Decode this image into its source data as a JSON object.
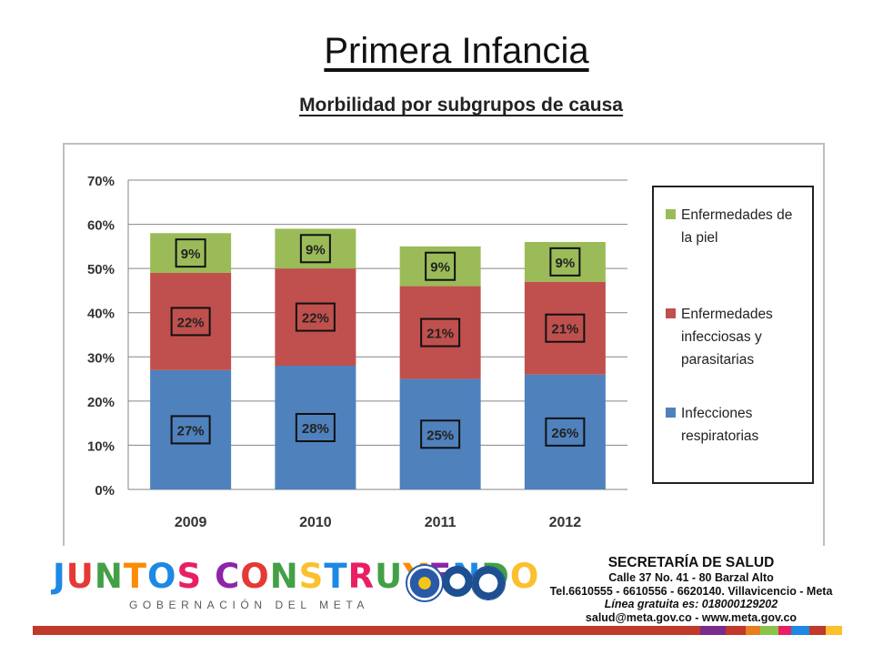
{
  "slide": {
    "title": "Primera Infancia",
    "subtitle": "Morbilidad por subgrupos de causa"
  },
  "chart_data": {
    "type": "bar",
    "stacked": true,
    "categories": [
      "2009",
      "2010",
      "2011",
      "2012"
    ],
    "series": [
      {
        "name": "Infecciones respiratorias",
        "values": [
          27,
          28,
          25,
          26
        ],
        "labels": [
          "27%",
          "28%",
          "25%",
          "26%"
        ],
        "color": "#4f81bd"
      },
      {
        "name": "Enfermedades infecciosas y parasitarias",
        "values": [
          22,
          22,
          21,
          21
        ],
        "labels": [
          "22%",
          "22%",
          "21%",
          "21%"
        ],
        "color": "#c0504d"
      },
      {
        "name": "Enfermedades de la piel",
        "values": [
          9,
          9,
          9,
          9
        ],
        "labels": [
          "9%",
          "9%",
          "9%",
          "9%"
        ],
        "color": "#9bbb59"
      }
    ],
    "legend_lines": [
      [
        "Enfermedades de",
        "la piel"
      ],
      [
        "Enfermedades",
        "infecciosas y",
        "parasitarias"
      ],
      [
        "Infecciones",
        "respiratorias"
      ]
    ],
    "yticks": [
      "0%",
      "10%",
      "20%",
      "30%",
      "40%",
      "50%",
      "60%",
      "70%"
    ],
    "ylim": [
      0,
      70
    ],
    "grid": true,
    "legend_position": "right"
  },
  "footer": {
    "logo_text": "JUNTOS CONSTRUYENDO",
    "logo_subtitle": "GOBERNACIÓN DEL META",
    "org": "SECRETARÍA DE SALUD",
    "lines": [
      "Calle 37 No. 41 - 80 Barzal Alto",
      "Tel.6610555 - 6610556 - 6620140. Villavicencio - Meta",
      "Línea gratuita es: 018000129202",
      "salud@meta.gov.co - www.meta.gov.co"
    ]
  },
  "colors": {
    "blue": "#4f81bd",
    "red": "#c0504d",
    "green": "#9bbb59",
    "stripe": [
      "#c0392b",
      "#7b2b8c",
      "#e67e22",
      "#8bc34a",
      "#e91e63",
      "#1e88e5",
      "#fbc02d"
    ]
  }
}
